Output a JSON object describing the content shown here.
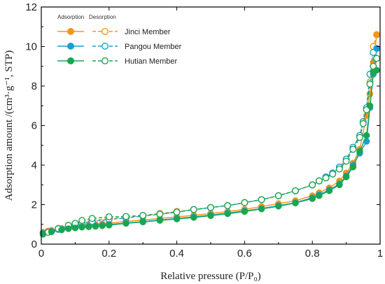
{
  "chart_data": {
    "type": "line",
    "xlabel": "Relative pressure (P/P₀)",
    "ylabel": "Adsorption amount /(cm³·g⁻¹, STP)",
    "xlim": [
      0,
      1
    ],
    "ylim": [
      0,
      12
    ],
    "x_ticks": [
      "0",
      "0.2",
      "0.4",
      "0.6",
      "0.8",
      "1"
    ],
    "y_ticks": [
      "0",
      "2",
      "4",
      "6",
      "8",
      "10",
      "12"
    ],
    "legend_position": "top-left",
    "legend_headers": [
      "Adsorption",
      "Desorption"
    ],
    "grid": false,
    "series": [
      {
        "name": "Jinci Member",
        "color": "#f7941d",
        "adsorption": {
          "x": [
            0.005,
            0.03,
            0.06,
            0.08,
            0.1,
            0.12,
            0.14,
            0.16,
            0.18,
            0.2,
            0.25,
            0.3,
            0.35,
            0.4,
            0.45,
            0.5,
            0.55,
            0.6,
            0.65,
            0.7,
            0.75,
            0.8,
            0.82,
            0.85,
            0.88,
            0.9,
            0.92,
            0.94,
            0.96,
            0.97,
            0.98,
            0.99
          ],
          "y": [
            0.6,
            0.7,
            0.8,
            0.85,
            0.9,
            0.95,
            0.98,
            1.0,
            1.03,
            1.06,
            1.15,
            1.22,
            1.3,
            1.38,
            1.46,
            1.55,
            1.65,
            1.76,
            1.9,
            2.05,
            2.2,
            2.45,
            2.6,
            2.85,
            3.2,
            3.6,
            4.1,
            4.8,
            6.5,
            7.6,
            9.2,
            10.6
          ]
        },
        "desorption": {
          "x": [
            0.99,
            0.98,
            0.97,
            0.96,
            0.95,
            0.94,
            0.92,
            0.9,
            0.88,
            0.86,
            0.84,
            0.82,
            0.8,
            0.75,
            0.7,
            0.65,
            0.6,
            0.55,
            0.5,
            0.45,
            0.4,
            0.35,
            0.3,
            0.25,
            0.2,
            0.15,
            0.12,
            0.1,
            0.08,
            0.05,
            0.02
          ],
          "y": [
            10.6,
            10.0,
            8.2,
            6.9,
            6.2,
            5.5,
            4.9,
            4.3,
            3.9,
            3.6,
            3.4,
            3.2,
            3.0,
            2.7,
            2.45,
            2.25,
            2.1,
            1.95,
            1.85,
            1.75,
            1.65,
            1.55,
            1.45,
            1.35,
            1.3,
            1.2,
            1.1,
            1.0,
            0.95,
            0.8,
            0.65
          ]
        }
      },
      {
        "name": "Pangou Member",
        "color": "#1b9fd3",
        "adsorption": {
          "x": [
            0.005,
            0.03,
            0.06,
            0.08,
            0.1,
            0.12,
            0.14,
            0.16,
            0.18,
            0.2,
            0.25,
            0.3,
            0.35,
            0.4,
            0.45,
            0.5,
            0.55,
            0.6,
            0.65,
            0.7,
            0.75,
            0.8,
            0.82,
            0.85,
            0.88,
            0.9,
            0.92,
            0.94,
            0.96,
            0.97,
            0.98,
            0.99
          ],
          "y": [
            0.55,
            0.65,
            0.75,
            0.8,
            0.85,
            0.88,
            0.9,
            0.93,
            0.96,
            1.0,
            1.07,
            1.14,
            1.22,
            1.3,
            1.38,
            1.47,
            1.57,
            1.68,
            1.8,
            1.95,
            2.1,
            2.35,
            2.5,
            2.75,
            3.05,
            3.45,
            4.0,
            4.6,
            5.2,
            6.9,
            8.6,
            9.9
          ]
        },
        "desorption": {
          "x": [
            0.99,
            0.98,
            0.97,
            0.96,
            0.95,
            0.94,
            0.92,
            0.9,
            0.88,
            0.86,
            0.84,
            0.82,
            0.8,
            0.75,
            0.7,
            0.65,
            0.6,
            0.55,
            0.5,
            0.45,
            0.4,
            0.35,
            0.3,
            0.25,
            0.2,
            0.15,
            0.12,
            0.1,
            0.08,
            0.05,
            0.02
          ],
          "y": [
            9.9,
            9.7,
            8.6,
            6.9,
            6.2,
            5.5,
            4.9,
            4.3,
            3.9,
            3.6,
            3.4,
            3.2,
            3.0,
            2.7,
            2.45,
            2.25,
            2.1,
            1.95,
            1.85,
            1.75,
            1.62,
            1.52,
            1.42,
            1.32,
            1.25,
            1.15,
            1.05,
            0.98,
            0.9,
            0.75,
            0.6
          ]
        }
      },
      {
        "name": "Hutian Member",
        "color": "#1aa550",
        "adsorption": {
          "x": [
            0.005,
            0.03,
            0.06,
            0.08,
            0.1,
            0.12,
            0.14,
            0.16,
            0.18,
            0.2,
            0.25,
            0.3,
            0.35,
            0.4,
            0.45,
            0.5,
            0.55,
            0.6,
            0.65,
            0.7,
            0.75,
            0.8,
            0.82,
            0.85,
            0.88,
            0.9,
            0.92,
            0.94,
            0.96,
            0.97,
            0.98,
            0.99
          ],
          "y": [
            0.5,
            0.62,
            0.72,
            0.78,
            0.82,
            0.86,
            0.88,
            0.9,
            0.93,
            0.96,
            1.05,
            1.12,
            1.2,
            1.27,
            1.35,
            1.44,
            1.54,
            1.65,
            1.78,
            1.92,
            2.08,
            2.3,
            2.45,
            2.7,
            3.0,
            3.4,
            3.9,
            4.7,
            5.5,
            7.0,
            8.7,
            8.8
          ]
        },
        "desorption": {
          "x": [
            0.99,
            0.98,
            0.97,
            0.96,
            0.95,
            0.94,
            0.92,
            0.9,
            0.88,
            0.86,
            0.84,
            0.82,
            0.8,
            0.75,
            0.7,
            0.65,
            0.6,
            0.55,
            0.5,
            0.45,
            0.4,
            0.35,
            0.3,
            0.25,
            0.2,
            0.15,
            0.12,
            0.1,
            0.08,
            0.05,
            0.02
          ],
          "y": [
            9.4,
            9.0,
            8.1,
            6.8,
            6.1,
            5.4,
            4.8,
            4.2,
            3.8,
            3.55,
            3.35,
            3.2,
            3.0,
            2.7,
            2.45,
            2.25,
            2.1,
            1.95,
            1.85,
            1.75,
            1.62,
            1.52,
            1.45,
            1.4,
            1.38,
            1.3,
            1.2,
            1.05,
            0.95,
            0.78,
            0.6
          ]
        }
      }
    ]
  }
}
